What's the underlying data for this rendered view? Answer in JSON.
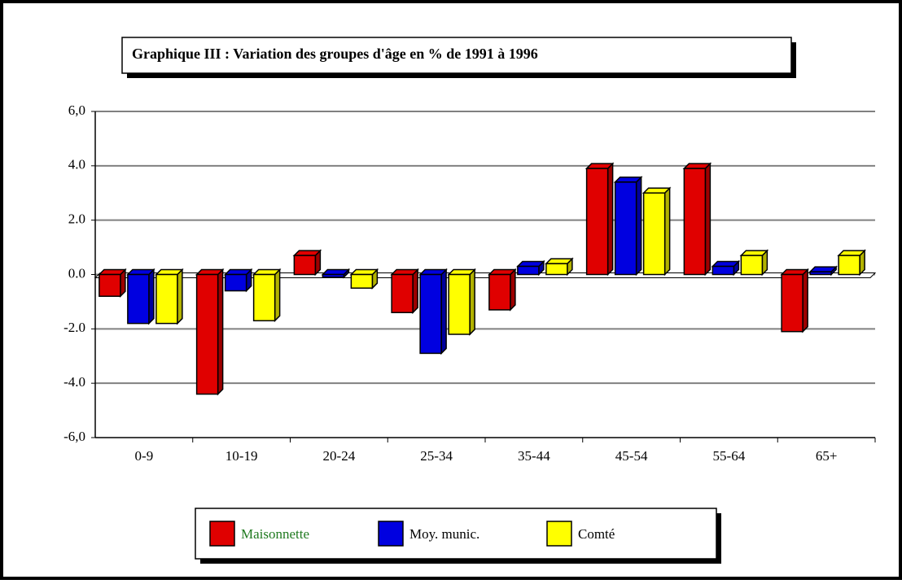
{
  "chart_data": {
    "type": "bar",
    "title": "Graphique III : Variation des groupes d'âge en % de 1991 à 1996",
    "categories": [
      "0-9",
      "10-19",
      "20-24",
      "25-34",
      "35-44",
      "45-54",
      "55-64",
      "65+"
    ],
    "series": [
      {
        "name": "Maisonnette",
        "color": "#e00000",
        "values": [
          -0.8,
          -4.4,
          0.7,
          -1.4,
          -1.3,
          3.9,
          3.9,
          -2.1
        ]
      },
      {
        "name": "Moy. munic.",
        "color": "#0000e0",
        "values": [
          -1.8,
          -0.6,
          -0.1,
          -2.9,
          0.3,
          3.4,
          0.3,
          0.1
        ]
      },
      {
        "name": "Comté",
        "color": "#ffff00",
        "values": [
          -1.8,
          -1.7,
          -0.5,
          -2.2,
          0.4,
          3.0,
          0.7,
          0.7
        ]
      }
    ],
    "ylim": [
      -6,
      6
    ],
    "yticks": [
      {
        "value": -6,
        "label": "-6,0"
      },
      {
        "value": -4,
        "label": "-4.0"
      },
      {
        "value": -2,
        "label": "-2.0"
      },
      {
        "value": 0,
        "label": "0.0"
      },
      {
        "value": 2,
        "label": "2.0"
      },
      {
        "value": 4,
        "label": "4.0"
      },
      {
        "value": 6,
        "label": "6,0"
      }
    ],
    "grid": true
  }
}
